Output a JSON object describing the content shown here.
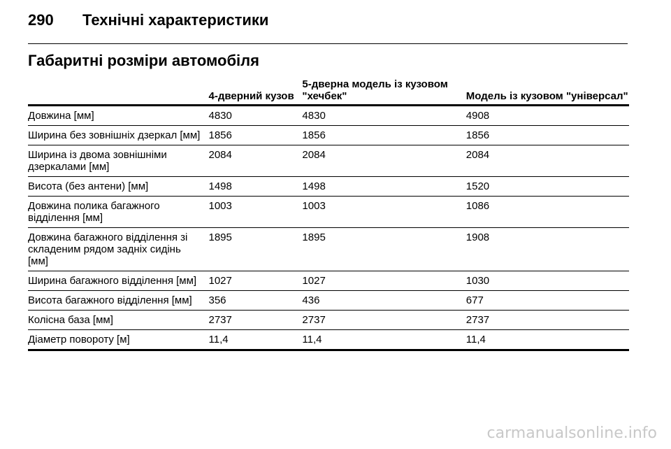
{
  "header": {
    "page_number": "290",
    "title": "Технічні характеристики"
  },
  "section_title": "Габаритні розміри автомобіля",
  "table": {
    "columns": [
      "",
      "4-дверний кузов",
      "5-дверна модель із кузовом \"хечбек\"",
      "Модель із кузовом \"універсал\""
    ],
    "rows": [
      [
        "Довжина [мм]",
        "4830",
        "4830",
        "4908"
      ],
      [
        "Ширина без зовнішніх дзеркал [мм]",
        "1856",
        "1856",
        "1856"
      ],
      [
        "Ширина із двома зовнішніми дзеркалами [мм]",
        "2084",
        "2084",
        "2084"
      ],
      [
        "Висота (без антени) [мм]",
        "1498",
        "1498",
        "1520"
      ],
      [
        "Довжина полика багажного відділення [мм]",
        "1003",
        "1003",
        "1086"
      ],
      [
        "Довжина багажного відділення зі складеним рядом задніх сидінь [мм]",
        "1895",
        "1895",
        "1908"
      ],
      [
        "Ширина багажного відділення [мм]",
        "1027",
        "1027",
        "1030"
      ],
      [
        "Висота багажного відділення [мм]",
        "356",
        "436",
        "677"
      ],
      [
        "Колісна база [мм]",
        "2737",
        "2737",
        "2737"
      ],
      [
        "Діаметр повороту [м]",
        "11,4",
        "11,4",
        "11,4"
      ]
    ]
  },
  "watermark": "carmanualsonline.info"
}
